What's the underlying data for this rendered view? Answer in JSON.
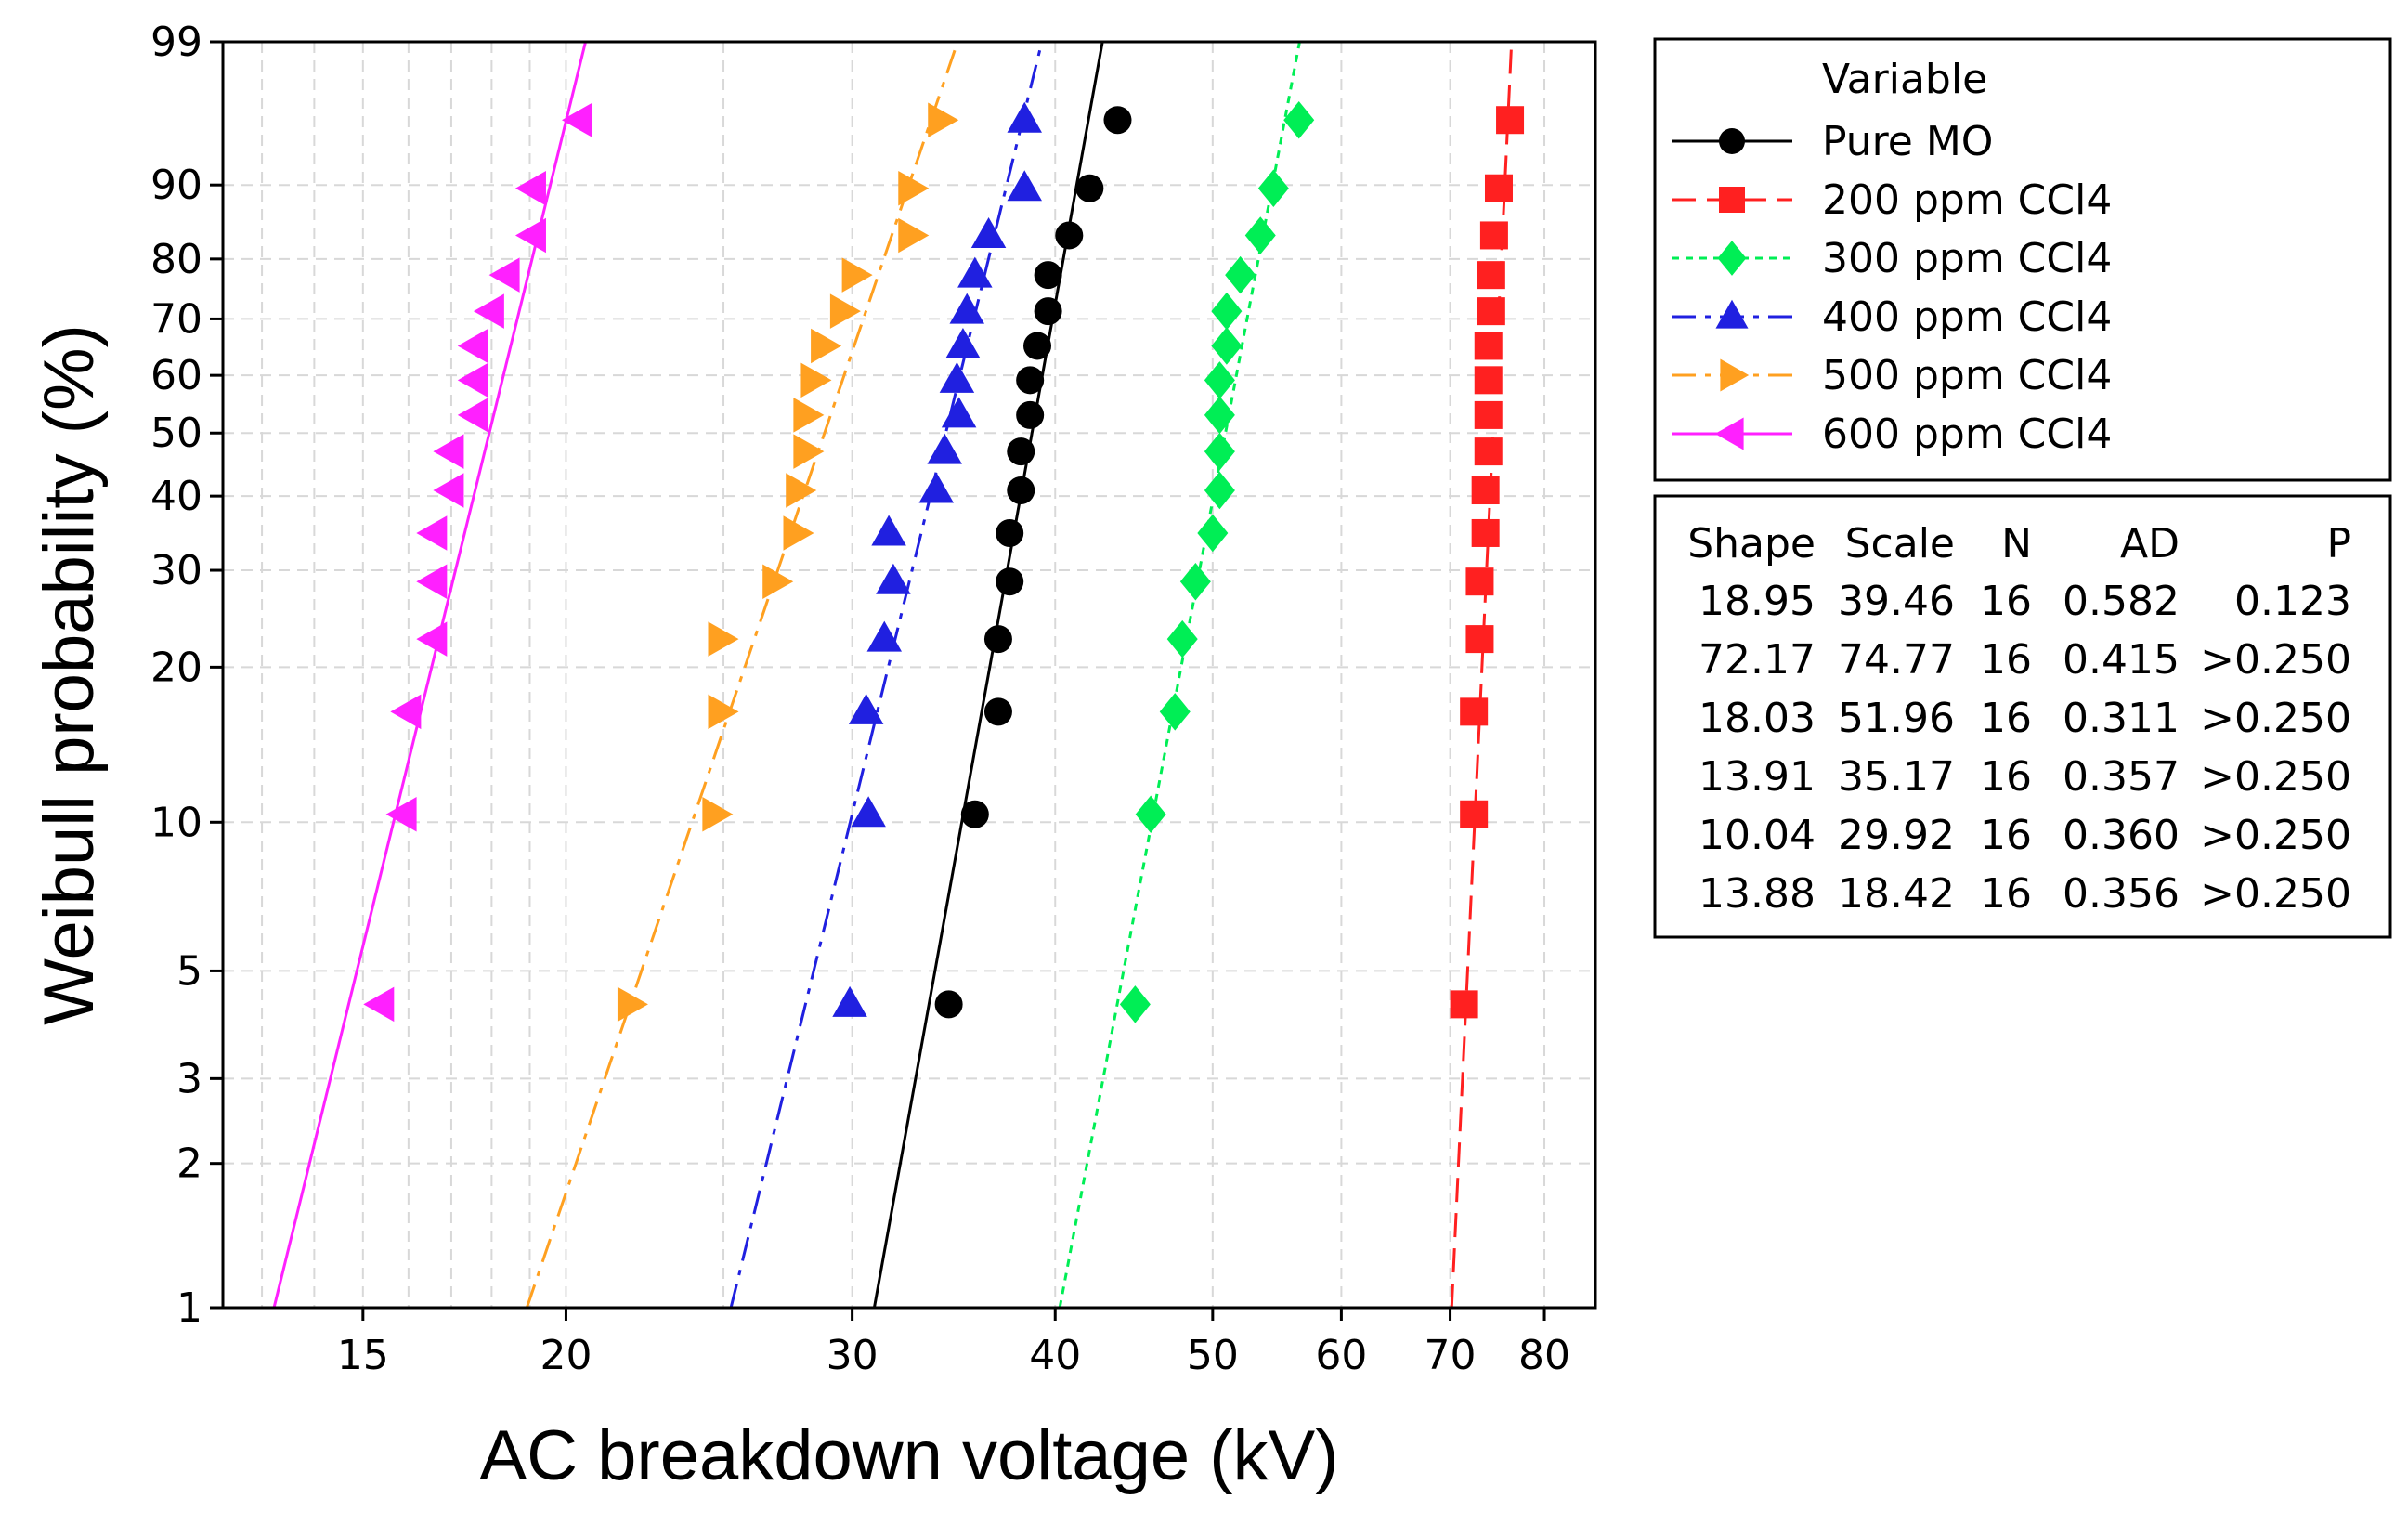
{
  "chart_data": {
    "type": "scatter",
    "subtype": "weibull-probability-plot",
    "xlabel": "AC breakdown voltage (kV)",
    "ylabel": "Weibull probability (%)",
    "x_scale": "log",
    "y_scale": "weibull",
    "xlim": [
      12.3,
      86
    ],
    "ylim": [
      1,
      99
    ],
    "x_ticks": [
      15,
      20,
      30,
      40,
      50,
      60,
      70,
      80
    ],
    "x_tick_labels": [
      "15",
      "20",
      "30",
      "40",
      "50",
      "60",
      "70",
      "80"
    ],
    "x_minor_grid": [
      13,
      14,
      16,
      17,
      18,
      19,
      25
    ],
    "y_ticks": [
      1,
      2,
      3,
      5,
      10,
      20,
      30,
      40,
      50,
      60,
      70,
      80,
      90,
      99
    ],
    "y_tick_labels": [
      "1",
      "2",
      "3",
      "5",
      "10",
      "20",
      "30",
      "40",
      "50",
      "60",
      "70",
      "80",
      "90",
      "99"
    ],
    "grid": true,
    "legend": {
      "title": "Variable",
      "position": "right-top",
      "entries": [
        "Pure MO",
        "200 ppm CCl4",
        "300 ppm CCl4",
        "400 ppm CCl4",
        "500 ppm CCl4",
        "600 ppm CCl4"
      ]
    },
    "stats_table": {
      "headers": [
        "Shape",
        "Scale",
        "N",
        "AD",
        "P"
      ],
      "rows": [
        [
          "18.95",
          "39.46",
          "16",
          "0.582",
          "0.123"
        ],
        [
          "72.17",
          "74.77",
          "16",
          "0.415",
          ">0.250"
        ],
        [
          "18.03",
          "51.96",
          "16",
          "0.311",
          ">0.250"
        ],
        [
          "13.91",
          "35.17",
          "16",
          "0.357",
          ">0.250"
        ],
        [
          "10.04",
          "29.92",
          "16",
          "0.360",
          ">0.250"
        ],
        [
          "13.88",
          "18.42",
          "16",
          "0.356",
          ">0.250"
        ]
      ]
    },
    "probabilities": [
      4.27,
      10.37,
      16.46,
      22.56,
      28.66,
      34.76,
      40.85,
      46.95,
      53.05,
      59.15,
      65.24,
      71.34,
      77.44,
      83.54,
      89.63,
      95.73
    ],
    "series": [
      {
        "name": "Pure MO",
        "color": "#000000",
        "marker": "circle",
        "line": "solid",
        "shape": 18.95,
        "scale": 39.46,
        "values": [
          34.4,
          35.7,
          36.9,
          36.9,
          37.5,
          37.5,
          38.1,
          38.1,
          38.6,
          38.6,
          39.0,
          39.6,
          39.6,
          40.8,
          42.0,
          43.7
        ]
      },
      {
        "name": "200 ppm CCl4",
        "color": "#ff2020",
        "marker": "square",
        "line": "dash",
        "shape": 72.17,
        "scale": 74.77,
        "values": [
          71.4,
          72.4,
          72.4,
          73.0,
          73.0,
          73.6,
          73.6,
          73.9,
          73.9,
          73.9,
          73.9,
          74.2,
          74.2,
          74.5,
          75.0,
          76.2
        ]
      },
      {
        "name": "300 ppm CCl4",
        "color": "#00ee55",
        "marker": "diamond",
        "line": "dot",
        "shape": 18.03,
        "scale": 51.96,
        "values": [
          44.8,
          45.8,
          47.4,
          47.9,
          48.8,
          50.0,
          50.5,
          50.5,
          50.5,
          50.5,
          51.0,
          51.0,
          52.0,
          53.5,
          54.5,
          56.5
        ]
      },
      {
        "name": "400 ppm CCl4",
        "color": "#2020e0",
        "marker": "triangle-up",
        "line": "dashdot",
        "shape": 13.91,
        "scale": 35.17,
        "values": [
          29.9,
          30.7,
          30.6,
          31.4,
          31.8,
          31.6,
          33.8,
          34.2,
          34.9,
          34.8,
          35.1,
          35.3,
          35.7,
          36.4,
          38.3,
          38.3
        ]
      },
      {
        "name": "500 ppm CCl4",
        "color": "#ffa020",
        "marker": "triangle-right",
        "line": "dashdot",
        "shape": 10.04,
        "scale": 29.92,
        "values": [
          21.9,
          24.7,
          24.9,
          24.9,
          26.9,
          27.7,
          27.8,
          28.1,
          28.1,
          28.4,
          28.8,
          29.6,
          30.1,
          32.6,
          32.6,
          34.0
        ]
      },
      {
        "name": "600 ppm CCl4",
        "color": "#ff20ff",
        "marker": "triangle-left",
        "line": "solid",
        "shape": 13.88,
        "scale": 18.42,
        "values": [
          15.4,
          15.9,
          16.0,
          16.6,
          16.6,
          16.6,
          17.0,
          17.0,
          17.6,
          17.6,
          17.6,
          18.0,
          18.4,
          19.1,
          19.1,
          20.4
        ]
      }
    ]
  }
}
